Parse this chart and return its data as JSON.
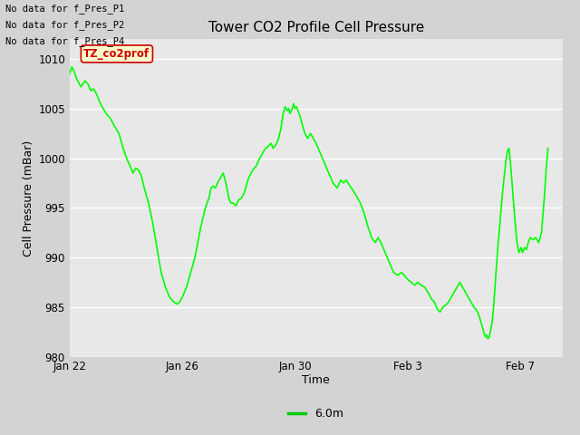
{
  "title": "Tower CO2 Profile Cell Pressure",
  "xlabel": "Time",
  "ylabel": "Cell Pressure (mBar)",
  "ylim": [
    980,
    1012
  ],
  "yticks": [
    980,
    985,
    990,
    995,
    1000,
    1005,
    1010
  ],
  "fig_bg_color": "#d3d3d3",
  "plot_bg_color": "#e8e8e8",
  "line_color": "#00ff00",
  "line_width": 1.2,
  "legend_label": "6.0m",
  "legend_line_color": "#00cc00",
  "no_data_texts": [
    "No data for f_Pres_P1",
    "No data for f_Pres_P2",
    "No data for f_Pres_P4"
  ],
  "tooltip_text": "TZ_co2prof",
  "tooltip_bg": "#ffffcc",
  "tooltip_border": "#cc0000",
  "xtick_labels": [
    "Jan 22",
    "Jan 26",
    "Jan 30",
    "Feb 3",
    "Feb 7"
  ],
  "xtick_offsets_days": [
    0,
    4,
    8,
    12,
    16
  ],
  "xlim_days": [
    0,
    17.5
  ],
  "data_points": [
    [
      0.0,
      1008.5
    ],
    [
      0.08,
      1009.2
    ],
    [
      0.15,
      1008.8
    ],
    [
      0.25,
      1008.0
    ],
    [
      0.4,
      1007.2
    ],
    [
      0.55,
      1007.8
    ],
    [
      0.65,
      1007.5
    ],
    [
      0.75,
      1006.8
    ],
    [
      0.85,
      1007.0
    ],
    [
      0.95,
      1006.5
    ],
    [
      1.05,
      1005.8
    ],
    [
      1.15,
      1005.2
    ],
    [
      1.3,
      1004.5
    ],
    [
      1.45,
      1004.0
    ],
    [
      1.6,
      1003.2
    ],
    [
      1.75,
      1002.5
    ],
    [
      1.9,
      1001.0
    ],
    [
      2.05,
      999.8
    ],
    [
      2.15,
      999.2
    ],
    [
      2.25,
      998.5
    ],
    [
      2.35,
      999.0
    ],
    [
      2.45,
      998.8
    ],
    [
      2.55,
      998.2
    ],
    [
      2.65,
      997.0
    ],
    [
      2.8,
      995.5
    ],
    [
      2.95,
      993.5
    ],
    [
      3.1,
      991.0
    ],
    [
      3.25,
      988.5
    ],
    [
      3.4,
      987.0
    ],
    [
      3.55,
      986.0
    ],
    [
      3.7,
      985.5
    ],
    [
      3.82,
      985.3
    ],
    [
      3.9,
      985.5
    ],
    [
      4.0,
      986.0
    ],
    [
      4.15,
      987.0
    ],
    [
      4.3,
      988.5
    ],
    [
      4.45,
      990.0
    ],
    [
      4.55,
      991.5
    ],
    [
      4.65,
      993.0
    ],
    [
      4.75,
      994.2
    ],
    [
      4.82,
      995.0
    ],
    [
      4.88,
      995.5
    ],
    [
      4.95,
      996.0
    ],
    [
      5.02,
      997.0
    ],
    [
      5.1,
      997.2
    ],
    [
      5.18,
      997.0
    ],
    [
      5.25,
      997.5
    ],
    [
      5.35,
      998.0
    ],
    [
      5.45,
      998.5
    ],
    [
      5.55,
      997.5
    ],
    [
      5.65,
      996.0
    ],
    [
      5.72,
      995.5
    ],
    [
      5.8,
      995.5
    ],
    [
      5.9,
      995.2
    ],
    [
      6.0,
      995.8
    ],
    [
      6.1,
      996.0
    ],
    [
      6.2,
      996.5
    ],
    [
      6.35,
      998.0
    ],
    [
      6.5,
      998.8
    ],
    [
      6.62,
      999.2
    ],
    [
      6.75,
      1000.0
    ],
    [
      6.85,
      1000.5
    ],
    [
      6.95,
      1001.0
    ],
    [
      7.05,
      1001.2
    ],
    [
      7.15,
      1001.5
    ],
    [
      7.22,
      1001.0
    ],
    [
      7.28,
      1001.2
    ],
    [
      7.35,
      1001.5
    ],
    [
      7.42,
      1002.0
    ],
    [
      7.5,
      1003.0
    ],
    [
      7.58,
      1004.5
    ],
    [
      7.65,
      1005.2
    ],
    [
      7.72,
      1004.8
    ],
    [
      7.78,
      1005.0
    ],
    [
      7.82,
      1004.5
    ],
    [
      7.88,
      1004.8
    ],
    [
      7.95,
      1005.5
    ],
    [
      8.0,
      1005.0
    ],
    [
      8.05,
      1005.2
    ],
    [
      8.1,
      1004.8
    ],
    [
      8.18,
      1004.2
    ],
    [
      8.25,
      1003.5
    ],
    [
      8.35,
      1002.5
    ],
    [
      8.45,
      1002.0
    ],
    [
      8.55,
      1002.5
    ],
    [
      8.65,
      1002.0
    ],
    [
      8.75,
      1001.5
    ],
    [
      8.9,
      1000.5
    ],
    [
      9.05,
      999.5
    ],
    [
      9.2,
      998.5
    ],
    [
      9.35,
      997.5
    ],
    [
      9.5,
      997.0
    ],
    [
      9.62,
      997.8
    ],
    [
      9.72,
      997.5
    ],
    [
      9.82,
      997.8
    ],
    [
      9.95,
      997.2
    ],
    [
      10.05,
      996.8
    ],
    [
      10.18,
      996.2
    ],
    [
      10.32,
      995.5
    ],
    [
      10.45,
      994.5
    ],
    [
      10.6,
      993.0
    ],
    [
      10.72,
      992.0
    ],
    [
      10.85,
      991.5
    ],
    [
      10.95,
      992.0
    ],
    [
      11.05,
      991.5
    ],
    [
      11.2,
      990.5
    ],
    [
      11.35,
      989.5
    ],
    [
      11.5,
      988.5
    ],
    [
      11.65,
      988.2
    ],
    [
      11.78,
      988.5
    ],
    [
      11.88,
      988.2
    ],
    [
      12.0,
      987.8
    ],
    [
      12.12,
      987.5
    ],
    [
      12.25,
      987.2
    ],
    [
      12.35,
      987.5
    ],
    [
      12.48,
      987.2
    ],
    [
      12.6,
      987.0
    ],
    [
      12.72,
      986.5
    ],
    [
      12.85,
      985.8
    ],
    [
      12.95,
      985.5
    ],
    [
      13.05,
      984.8
    ],
    [
      13.15,
      984.5
    ],
    [
      13.25,
      985.0
    ],
    [
      13.35,
      985.2
    ],
    [
      13.45,
      985.5
    ],
    [
      13.55,
      986.0
    ],
    [
      13.65,
      986.5
    ],
    [
      13.75,
      987.0
    ],
    [
      13.85,
      987.5
    ],
    [
      13.95,
      987.0
    ],
    [
      14.05,
      986.5
    ],
    [
      14.15,
      986.0
    ],
    [
      14.25,
      985.5
    ],
    [
      14.35,
      985.0
    ],
    [
      14.42,
      984.8
    ],
    [
      14.48,
      984.5
    ],
    [
      14.55,
      984.0
    ],
    [
      14.6,
      983.5
    ],
    [
      14.65,
      983.0
    ],
    [
      14.7,
      982.5
    ],
    [
      14.75,
      982.0
    ],
    [
      14.8,
      982.2
    ],
    [
      14.85,
      981.8
    ],
    [
      14.9,
      982.0
    ],
    [
      15.0,
      983.5
    ],
    [
      15.05,
      985.0
    ],
    [
      15.1,
      987.0
    ],
    [
      15.15,
      989.0
    ],
    [
      15.2,
      991.0
    ],
    [
      15.28,
      993.5
    ],
    [
      15.35,
      996.0
    ],
    [
      15.42,
      998.0
    ],
    [
      15.5,
      1000.0
    ],
    [
      15.55,
      1000.8
    ],
    [
      15.6,
      1001.0
    ],
    [
      15.65,
      999.5
    ],
    [
      15.72,
      997.0
    ],
    [
      15.8,
      994.0
    ],
    [
      15.88,
      991.5
    ],
    [
      15.95,
      990.5
    ],
    [
      16.02,
      991.0
    ],
    [
      16.08,
      990.5
    ],
    [
      16.15,
      991.0
    ],
    [
      16.22,
      990.8
    ],
    [
      16.28,
      991.5
    ],
    [
      16.35,
      992.0
    ],
    [
      16.45,
      991.8
    ],
    [
      16.55,
      992.0
    ],
    [
      16.65,
      991.5
    ],
    [
      16.75,
      992.5
    ],
    [
      16.85,
      996.0
    ],
    [
      16.92,
      999.0
    ],
    [
      16.98,
      1001.0
    ]
  ]
}
